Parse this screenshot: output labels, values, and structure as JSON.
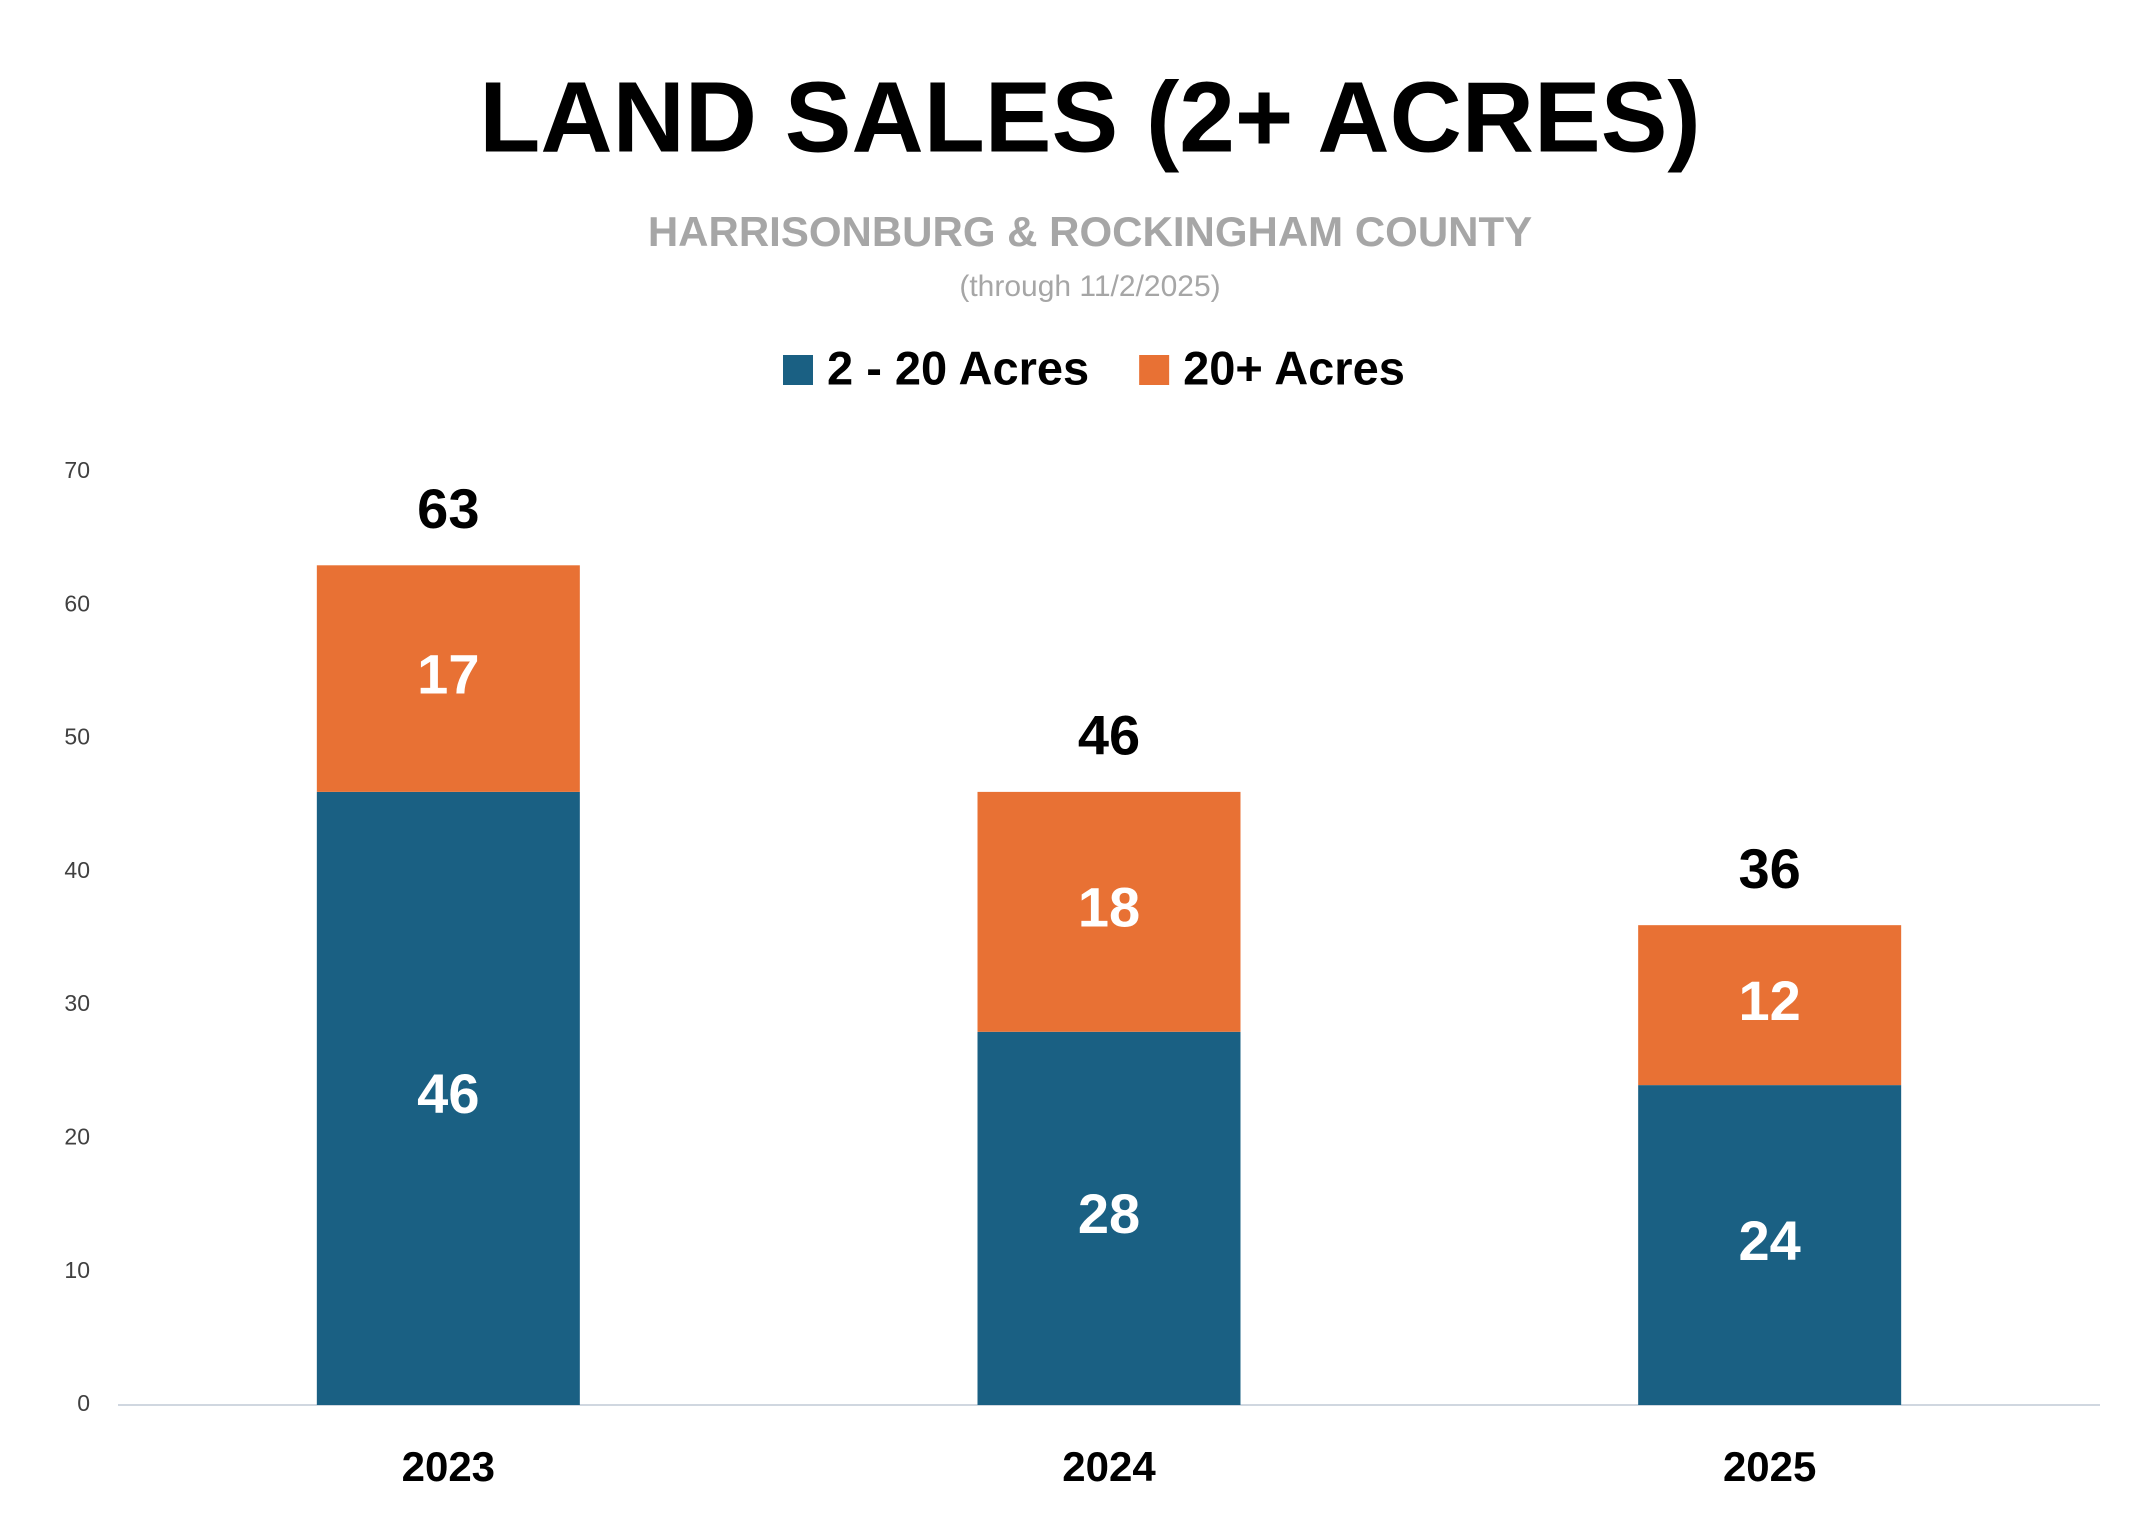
{
  "chart_data": {
    "type": "stacked_bar",
    "title": "LAND SALES (2+ ACRES)",
    "subtitle": "HARRISONBURG & ROCKINGHAM COUNTY",
    "note": "(through 11/2/2025)",
    "categories": [
      "2023",
      "2024",
      "2025"
    ],
    "series": [
      {
        "name": "2 - 20 Acres",
        "color": "#1a6083",
        "values": [
          46,
          28,
          24
        ]
      },
      {
        "name": "20+ Acres",
        "color": "#e87134",
        "values": [
          17,
          18,
          12
        ]
      }
    ],
    "totals": [
      63,
      46,
      36
    ],
    "ylim": [
      0,
      70
    ],
    "yticks": [
      0,
      10,
      20,
      30,
      40,
      50,
      60,
      70
    ],
    "legend": "top"
  }
}
